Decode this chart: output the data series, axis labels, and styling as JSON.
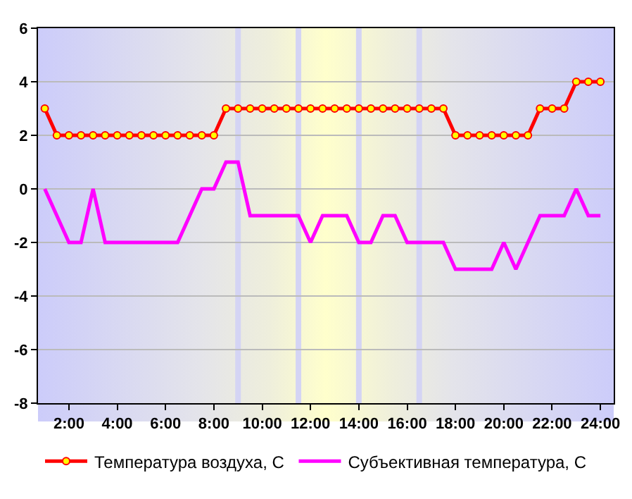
{
  "chart_data": {
    "type": "line",
    "x": [
      1,
      1.5,
      2,
      2.5,
      3,
      3.5,
      4,
      4.5,
      5,
      5.5,
      6,
      6.5,
      7,
      7.5,
      8,
      8.5,
      9,
      9.5,
      10,
      10.5,
      11,
      11.5,
      12,
      12.5,
      13,
      13.5,
      14,
      14.5,
      15,
      15.5,
      16,
      16.5,
      17,
      17.5,
      18,
      18.5,
      19,
      19.5,
      20,
      20.5,
      21,
      21.5,
      22,
      22.5,
      23,
      23.5,
      24
    ],
    "series": [
      {
        "name": "Температура воздуха, С",
        "color": "#ff0000",
        "marker": "circle",
        "values": [
          3,
          2,
          2,
          2,
          2,
          2,
          2,
          2,
          2,
          2,
          2,
          2,
          2,
          2,
          2,
          3,
          3,
          3,
          3,
          3,
          3,
          3,
          3,
          3,
          3,
          3,
          3,
          3,
          3,
          3,
          3,
          3,
          3,
          3,
          2,
          2,
          2,
          2,
          2,
          2,
          2,
          3,
          3,
          3,
          4,
          4,
          4
        ]
      },
      {
        "name": "Субъективная температура, С",
        "color": "#ff00ff",
        "marker": "none",
        "values": [
          0,
          -1,
          -2,
          -2,
          0,
          -2,
          -2,
          -2,
          -2,
          -2,
          -2,
          -2,
          -1,
          0,
          0,
          1,
          1,
          -1,
          -1,
          -1,
          -1,
          -1,
          -2,
          -1,
          -1,
          -1,
          -2,
          -2,
          -1,
          -1,
          -2,
          -2,
          -2,
          -2,
          -3,
          -3,
          -3,
          -3,
          -2,
          -3,
          -2,
          -1,
          -1,
          -1,
          0,
          -1,
          -1
        ]
      }
    ],
    "xlim": [
      0.72,
      24.55
    ],
    "xticks": [
      {
        "value": 2,
        "label": "2:00"
      },
      {
        "value": 4,
        "label": "4:00"
      },
      {
        "value": 6,
        "label": "6:00"
      },
      {
        "value": 8,
        "label": "8:00"
      },
      {
        "value": 10,
        "label": "10:00"
      },
      {
        "value": 12,
        "label": "12:00"
      },
      {
        "value": 14,
        "label": "14:00"
      },
      {
        "value": 16,
        "label": "16:00"
      },
      {
        "value": 18,
        "label": "18:00"
      },
      {
        "value": 20,
        "label": "20:00"
      },
      {
        "value": 22,
        "label": "22:00"
      },
      {
        "value": 24,
        "label": "24:00"
      }
    ],
    "ylim": [
      -8,
      6
    ],
    "yticks": [
      -8,
      -6,
      -4,
      -2,
      0,
      2,
      4,
      6
    ],
    "ref_lines": [
      {
        "axis": "x",
        "value": 9,
        "color": "#d4d4f4"
      },
      {
        "axis": "x",
        "value": 11.5,
        "color": "#d4d4f4"
      },
      {
        "axis": "x",
        "value": 14,
        "color": "#d4d4f4"
      },
      {
        "axis": "x",
        "value": 16.5,
        "color": "#d4d4f4"
      }
    ],
    "grid": "y",
    "legend": "bottom",
    "line_style": "solid"
  }
}
